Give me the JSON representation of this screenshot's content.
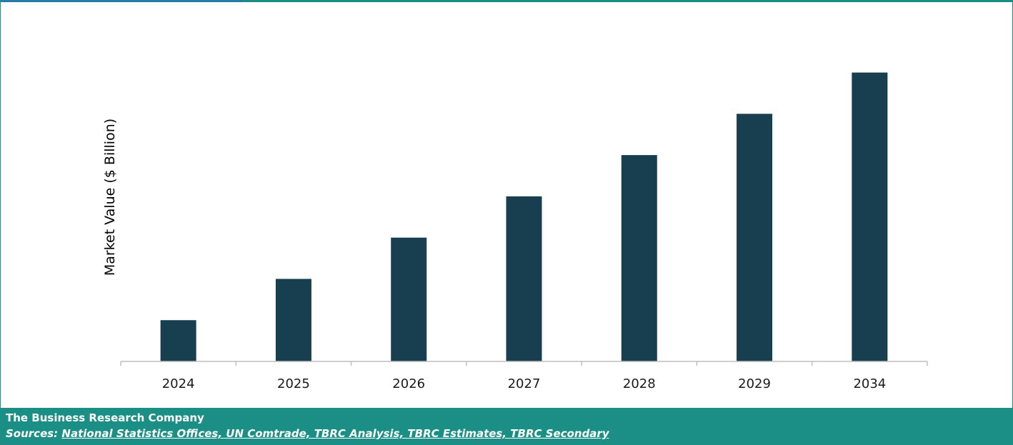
{
  "colors": {
    "bar": "#173f4f",
    "footer_bg": "#1b8f85",
    "axis": "#bfbfbf"
  },
  "chart_data": {
    "type": "bar",
    "title": "",
    "xlabel": "",
    "ylabel": "Market Value ($ Billion)",
    "categories": [
      "2024",
      "2025",
      "2026",
      "2027",
      "2028",
      "2029",
      "2034"
    ],
    "values": [
      1.0,
      2.0,
      3.0,
      4.0,
      5.0,
      6.0,
      7.0
    ],
    "ylim": [
      0,
      7.2
    ],
    "grid": false,
    "legend": "none"
  },
  "footer": {
    "company": "The Business Research Company",
    "sources_prefix": "Sources: ",
    "sources_link": "National Statistics Offices, UN Comtrade, TBRC Analysis, TBRC Estimates, TBRC Secondary"
  }
}
